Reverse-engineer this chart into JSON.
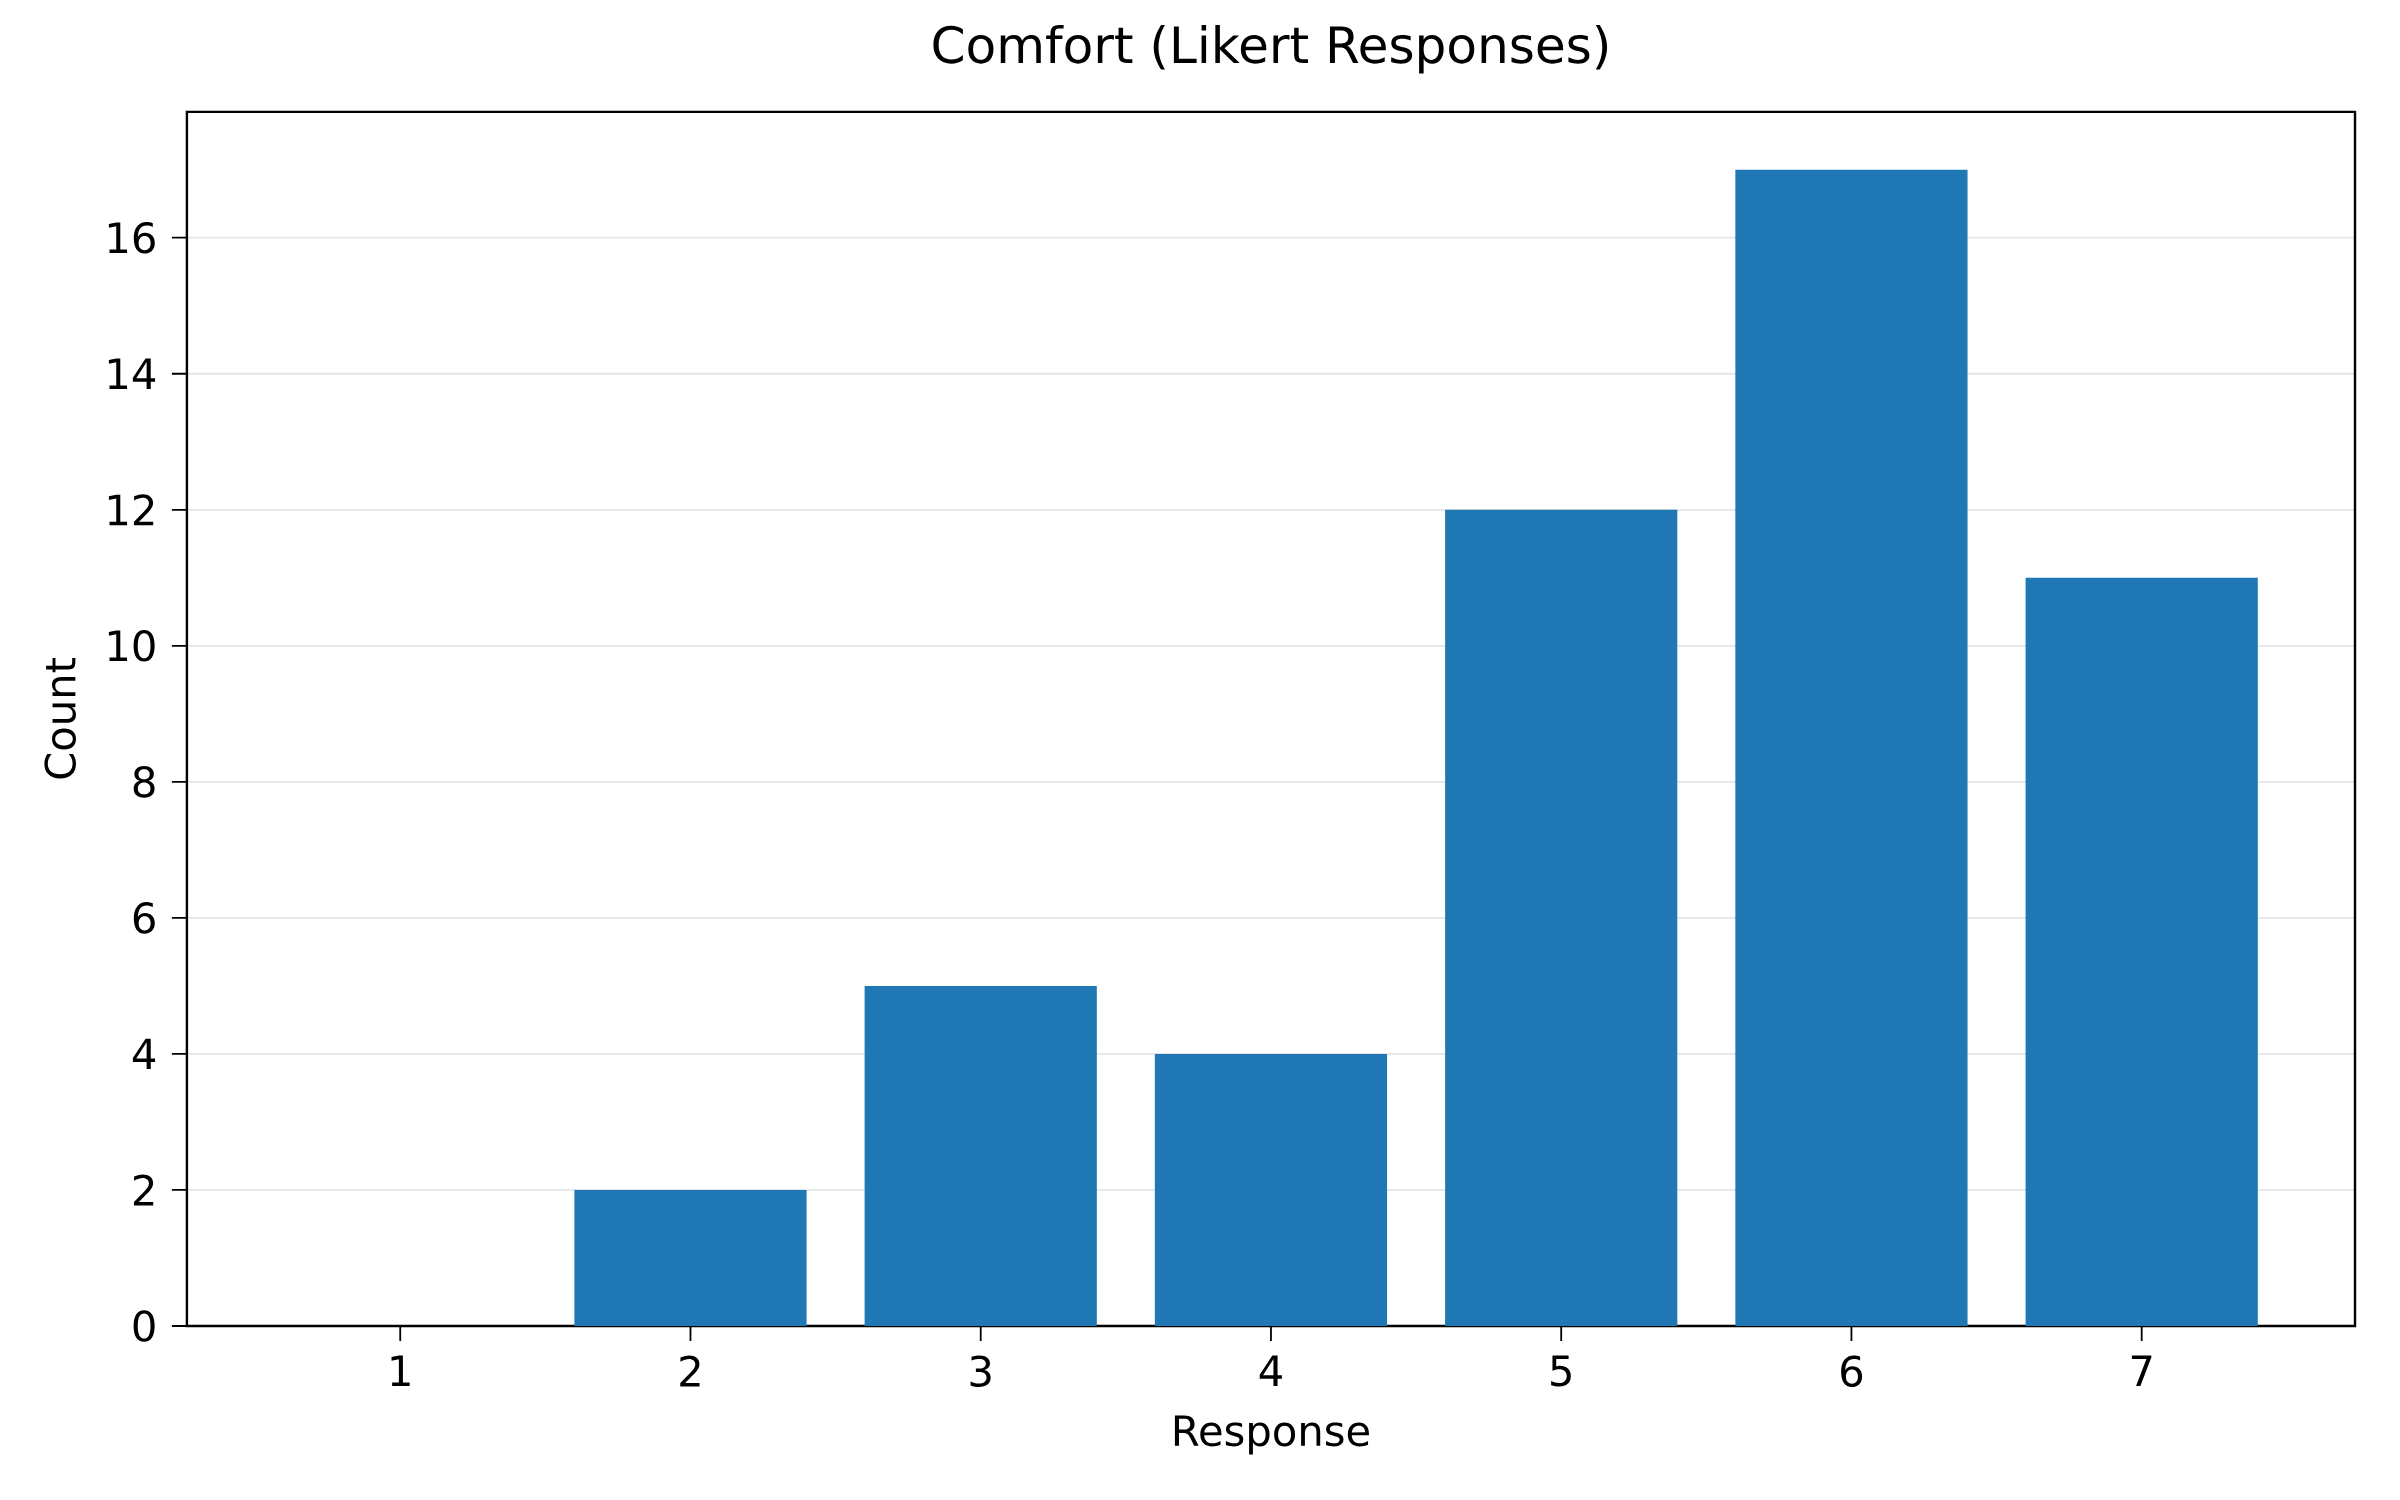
{
  "chart_data": {
    "type": "bar",
    "title": "Comfort (Likert Responses)",
    "xlabel": "Response",
    "ylabel": "Count",
    "categories": [
      "1",
      "2",
      "3",
      "4",
      "5",
      "6",
      "7"
    ],
    "values": [
      0,
      2,
      5,
      4,
      12,
      17,
      11
    ],
    "color": "#1f77b4",
    "ylim": [
      0,
      17.85
    ],
    "yticks": [
      0,
      2,
      4,
      6,
      8,
      10,
      12,
      14,
      16
    ],
    "grid": "y"
  }
}
